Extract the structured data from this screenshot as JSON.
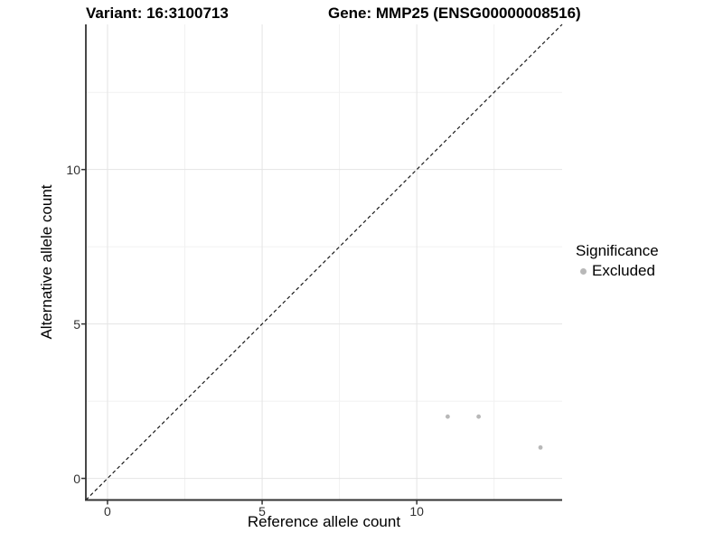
{
  "header": {
    "variant_title": "Variant: 16:3100713",
    "gene_title": "Gene: MMP25 (ENSG00000008516)"
  },
  "chart_data": {
    "type": "scatter",
    "xlabel": "Reference allele count",
    "ylabel": "Alternative allele count",
    "xlim": [
      -0.7,
      14.7
    ],
    "ylim": [
      -0.7,
      14.7
    ],
    "x_major_ticks": [
      0,
      5,
      10
    ],
    "y_major_ticks": [
      0,
      5,
      10
    ],
    "x_minor_gridlines": [
      2.5,
      7.5,
      12.5
    ],
    "y_minor_gridlines": [
      2.5,
      7.5,
      12.5
    ],
    "grid": true,
    "series": [
      {
        "name": "Excluded",
        "color": "#b8b8b8",
        "points": [
          [
            11,
            2
          ],
          [
            12,
            2
          ],
          [
            14,
            1
          ]
        ]
      }
    ],
    "identity_line": {
      "style": "dashed",
      "slope": 1,
      "intercept": 0
    },
    "legend": {
      "title": "Significance",
      "position": "right",
      "items": [
        {
          "label": "Excluded",
          "color": "#b8b8b8",
          "marker": "circle"
        }
      ]
    },
    "colors": {
      "point": "#b8b8b8",
      "grid_major": "#e4e4e4",
      "grid_minor": "#f1f1f1",
      "axis_line": "#333333",
      "tick_mark": "#333333",
      "tick_label": "#303030",
      "dashed_line": "#1a1a1a",
      "background": "#ffffff"
    }
  }
}
